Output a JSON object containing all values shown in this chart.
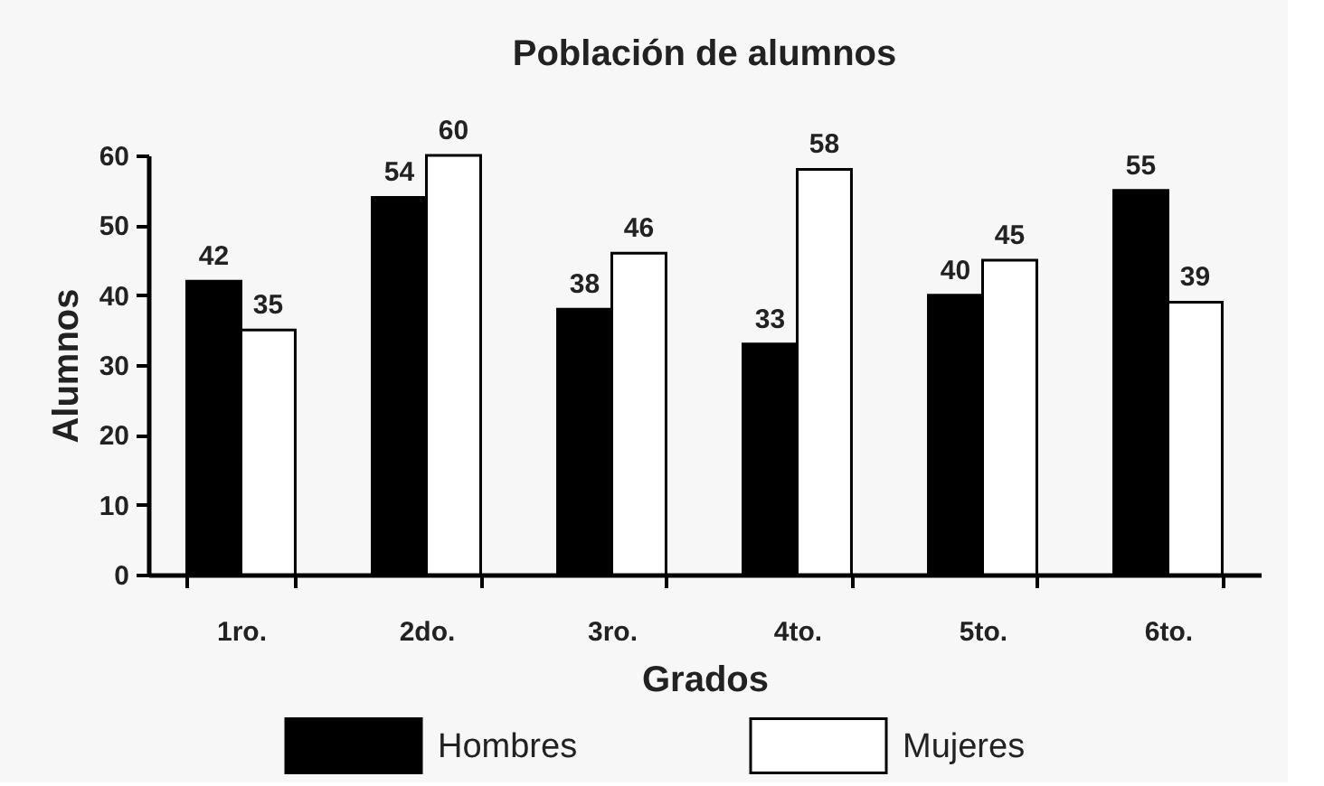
{
  "chart_data": {
    "type": "bar",
    "title": "Población de alumnos",
    "xlabel": "Grados",
    "ylabel": "Alumnos",
    "categories": [
      "1ro.",
      "2do.",
      "3ro.",
      "4to.",
      "5to.",
      "6to."
    ],
    "series": [
      {
        "name": "Hombres",
        "color": "#000000",
        "values": [
          42,
          54,
          38,
          33,
          40,
          55
        ]
      },
      {
        "name": "Mujeres",
        "color": "#ffffff",
        "values": [
          35,
          60,
          46,
          58,
          45,
          39
        ]
      }
    ],
    "ylim": [
      0,
      60
    ],
    "yticks": [
      0,
      10,
      20,
      30,
      40,
      50,
      60
    ],
    "data_labels": true,
    "legend": "bottom",
    "grid": false
  }
}
